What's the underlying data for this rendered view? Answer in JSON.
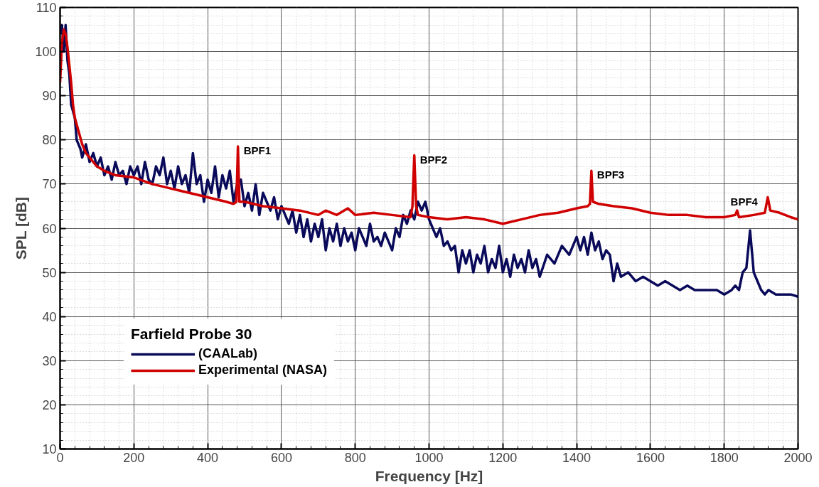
{
  "chart_data": {
    "type": "line",
    "xlabel": "Frequency [Hz]",
    "ylabel": "SPL [dB]",
    "legend_title": "Farfield Probe 30",
    "xlim": [
      0,
      2000
    ],
    "ylim": [
      10,
      110
    ],
    "xticks": [
      0,
      200,
      400,
      600,
      800,
      1000,
      1200,
      1400,
      1600,
      1800,
      2000
    ],
    "yticks": [
      10,
      20,
      30,
      40,
      50,
      60,
      70,
      80,
      90,
      100,
      110
    ],
    "grid": true,
    "legend": "bottom left",
    "marker": "none",
    "line_style": "solid",
    "series": [
      {
        "name": "(CAALab)",
        "color": "#0a0a5a",
        "x": [
          0,
          5,
          10,
          15,
          20,
          25,
          30,
          40,
          45,
          55,
          60,
          70,
          80,
          90,
          100,
          110,
          120,
          130,
          140,
          150,
          160,
          170,
          180,
          190,
          200,
          210,
          220,
          230,
          240,
          250,
          260,
          270,
          280,
          290,
          300,
          310,
          320,
          330,
          340,
          350,
          360,
          370,
          380,
          390,
          400,
          410,
          420,
          430,
          440,
          450,
          460,
          470,
          480,
          490,
          500,
          510,
          520,
          530,
          540,
          550,
          560,
          570,
          580,
          590,
          600,
          610,
          620,
          630,
          640,
          650,
          660,
          670,
          680,
          690,
          700,
          710,
          720,
          730,
          740,
          750,
          760,
          770,
          780,
          790,
          800,
          810,
          820,
          830,
          840,
          850,
          860,
          870,
          880,
          890,
          900,
          910,
          920,
          930,
          940,
          950,
          960,
          970,
          980,
          990,
          1000,
          1010,
          1020,
          1030,
          1040,
          1050,
          1060,
          1070,
          1080,
          1090,
          1100,
          1110,
          1120,
          1130,
          1140,
          1150,
          1160,
          1170,
          1180,
          1190,
          1200,
          1210,
          1220,
          1230,
          1240,
          1250,
          1260,
          1270,
          1280,
          1290,
          1300,
          1320,
          1340,
          1360,
          1380,
          1400,
          1410,
          1420,
          1430,
          1440,
          1450,
          1460,
          1470,
          1480,
          1490,
          1500,
          1510,
          1520,
          1540,
          1560,
          1580,
          1600,
          1620,
          1640,
          1660,
          1680,
          1700,
          1720,
          1740,
          1760,
          1780,
          1800,
          1820,
          1830,
          1840,
          1850,
          1860,
          1870,
          1880,
          1890,
          1900,
          1910,
          1920,
          1940,
          1960,
          1980,
          2000
        ],
        "values": [
          104,
          106,
          100,
          106,
          98,
          95,
          88,
          85,
          80,
          78,
          76,
          79,
          75,
          77,
          74,
          76,
          72,
          74,
          71,
          75,
          72,
          73,
          70,
          74,
          72,
          74,
          70,
          75,
          71,
          70,
          74,
          72,
          76,
          70,
          73,
          69,
          74,
          70,
          72,
          68,
          77,
          70,
          72,
          66,
          71,
          68,
          74,
          67,
          72,
          69,
          73,
          66,
          70,
          71,
          65,
          68,
          64,
          70,
          63,
          68,
          66,
          64,
          67,
          62,
          65,
          63,
          61,
          64,
          59,
          63,
          58,
          62,
          57,
          61,
          58,
          62,
          55,
          60,
          57,
          61,
          56,
          60,
          57,
          59,
          55,
          60,
          58,
          56,
          61,
          57,
          58,
          56,
          59,
          57,
          55,
          60,
          58,
          63,
          61,
          64,
          62,
          66,
          64,
          66,
          62,
          60,
          58,
          60,
          56,
          57,
          55,
          56,
          50,
          55,
          52,
          55,
          50,
          54,
          52,
          56,
          50,
          53,
          51,
          56,
          50,
          53,
          49,
          54,
          51,
          53,
          50,
          55,
          51,
          53,
          49,
          54,
          52,
          56,
          54,
          58,
          55,
          58,
          54,
          59,
          55,
          57,
          53,
          55,
          54,
          48,
          52,
          49,
          50,
          48,
          49,
          48,
          47,
          48,
          47,
          46,
          47,
          46,
          46,
          46,
          46,
          45,
          46,
          47,
          46,
          50,
          51,
          59.5,
          50,
          48,
          46,
          45,
          46,
          45,
          45,
          45,
          44.5
        ]
      },
      {
        "name": "Experimental (NASA)",
        "color": "#d00000",
        "x": [
          0,
          5,
          10,
          15,
          20,
          25,
          30,
          35,
          40,
          50,
          60,
          70,
          80,
          100,
          120,
          150,
          200,
          250,
          300,
          350,
          400,
          450,
          470,
          478,
          482,
          486,
          500,
          550,
          600,
          650,
          700,
          720,
          750,
          780,
          800,
          850,
          900,
          950,
          955,
          960,
          965,
          970,
          1000,
          1050,
          1100,
          1150,
          1200,
          1250,
          1300,
          1350,
          1400,
          1430,
          1436,
          1440,
          1444,
          1460,
          1500,
          1550,
          1600,
          1650,
          1700,
          1750,
          1800,
          1830,
          1835,
          1840,
          1880,
          1910,
          1918,
          1925,
          1950,
          1980,
          2000
        ],
        "values": [
          93,
          102,
          105,
          104,
          101,
          97,
          93,
          88,
          85,
          82,
          79,
          77,
          76,
          74,
          73,
          72,
          71.5,
          70,
          69,
          68,
          67,
          66,
          65.5,
          66,
          78.5,
          66,
          66,
          65,
          64.5,
          64,
          63,
          64,
          63,
          64.5,
          63,
          63.5,
          63,
          62.5,
          65,
          76.5,
          65,
          63,
          62.5,
          62,
          62.5,
          62,
          61,
          62,
          63,
          63.5,
          64.5,
          65,
          65.5,
          73,
          66,
          65.5,
          65,
          64.5,
          63.5,
          63,
          63,
          62.5,
          62.5,
          63,
          64,
          62.5,
          63,
          63.5,
          67,
          64,
          63.5,
          62.5,
          62
        ]
      }
    ],
    "annotations": [
      {
        "text": "BPF1",
        "x": 482,
        "y": 78.5
      },
      {
        "text": "BPF2",
        "x": 960,
        "y": 76.5
      },
      {
        "text": "BPF3",
        "x": 1440,
        "y": 73
      },
      {
        "text": "BPF4",
        "x": 1918,
        "y": 67
      }
    ]
  }
}
